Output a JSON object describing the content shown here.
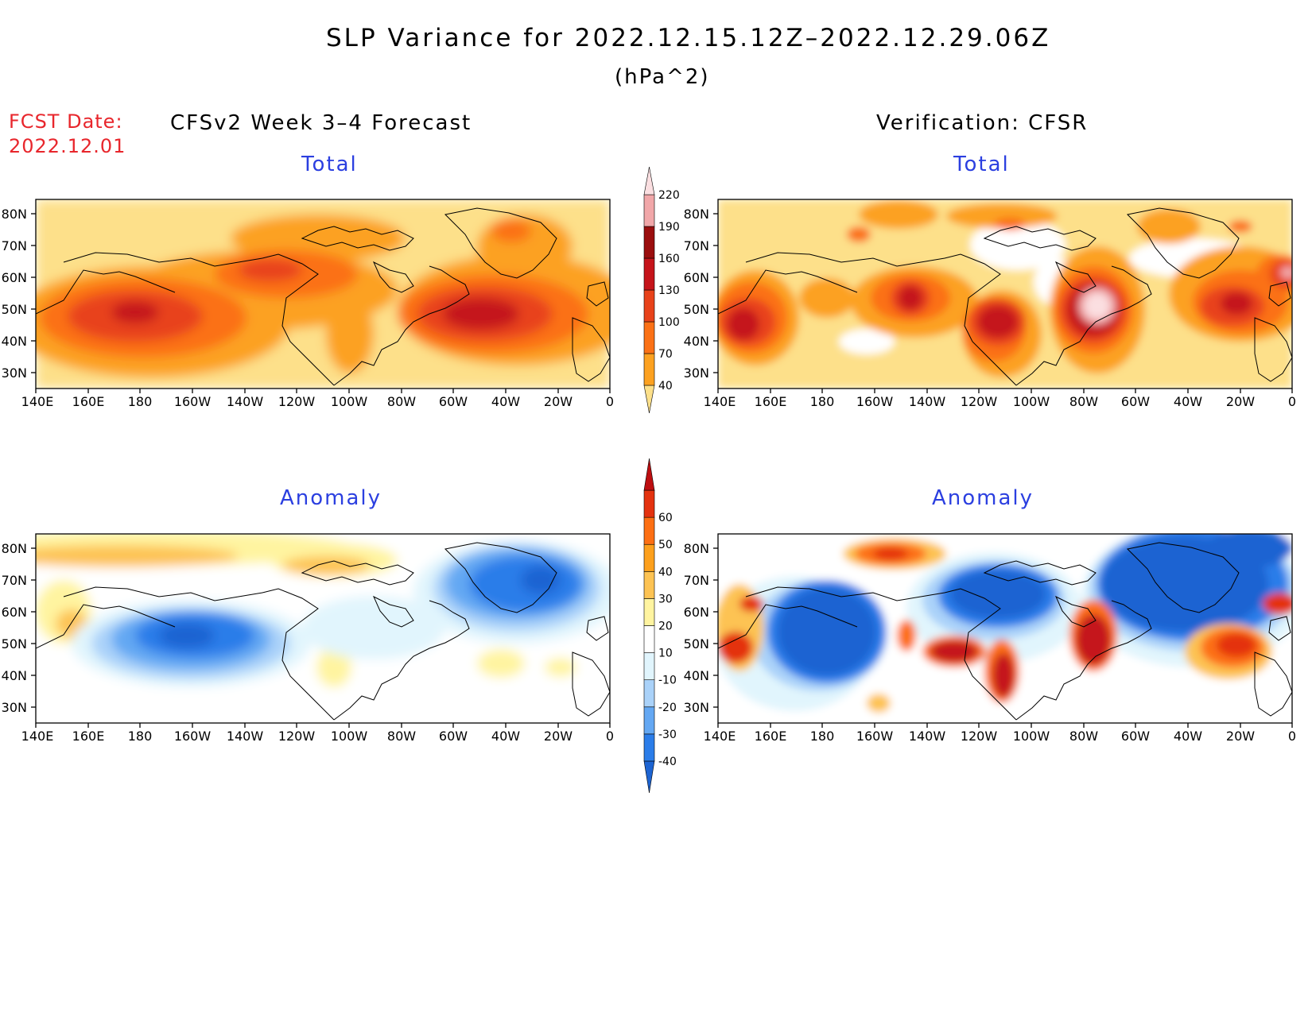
{
  "title": "SLP Variance for 2022.12.15.12Z–2022.12.29.06Z",
  "units": "(hPa^2)",
  "forecast_date": {
    "label": "FCST Date:",
    "value": "2022.12.01"
  },
  "left_header": "CFSv2 Week 3–4 Forecast",
  "right_header": "Verification: CFSR",
  "panels": {
    "fcst_total": {
      "title": "Total"
    },
    "obs_total": {
      "title": "Total"
    },
    "fcst_anom": {
      "title": "Anomaly"
    },
    "obs_anom": {
      "title": "Anomaly"
    }
  },
  "lon_labels": [
    "140E",
    "160E",
    "180",
    "160W",
    "140W",
    "120W",
    "100W",
    "80W",
    "60W",
    "40W",
    "20W",
    "0"
  ],
  "lat_labels": [
    "80N",
    "70N",
    "60N",
    "50N",
    "40N",
    "30N"
  ],
  "chart_data": {
    "type": "heatmap",
    "x_axis": {
      "range": [
        "140E",
        "0"
      ],
      "ticks": [
        "140E",
        "160E",
        "180",
        "160W",
        "140W",
        "120W",
        "100W",
        "80W",
        "60W",
        "40W",
        "20W",
        "0"
      ]
    },
    "y_axis": {
      "range": [
        "25N",
        "85N"
      ],
      "ticks": [
        "80N",
        "70N",
        "60N",
        "50N",
        "40N",
        "30N"
      ]
    },
    "total_colorbar": {
      "levels": [
        40,
        70,
        100,
        130,
        160,
        190,
        220
      ],
      "colors": [
        "#fde08a",
        "#fca120",
        "#fb7116",
        "#e8421a",
        "#c5141a",
        "#9b0e0e",
        "#f1a7a9",
        "#fbdfe1"
      ]
    },
    "anomaly_colorbar": {
      "levels": [
        -40,
        -30,
        -20,
        -10,
        10,
        20,
        30,
        40,
        50,
        60
      ],
      "colors": [
        "#1d64d2",
        "#2b7de9",
        "#64a8f3",
        "#aad2f9",
        "#e1f5fd",
        "#ffffff",
        "#fff4a0",
        "#fdc353",
        "#fda01c",
        "#fd6f13",
        "#e4320f",
        "#bd0e10"
      ]
    }
  }
}
